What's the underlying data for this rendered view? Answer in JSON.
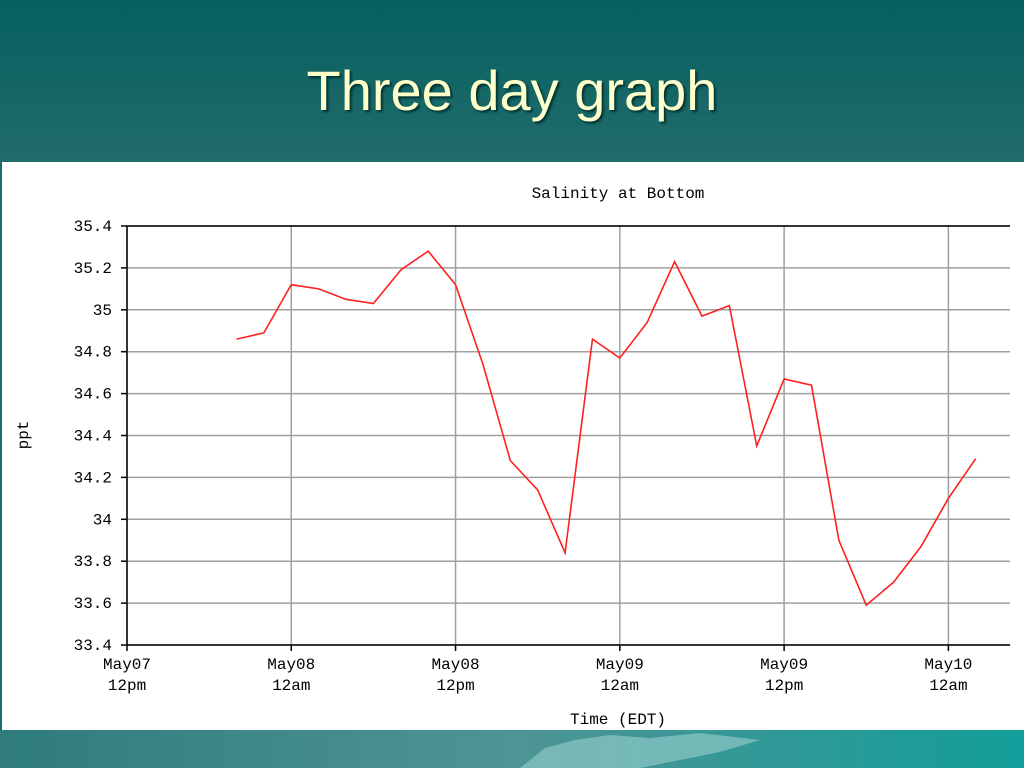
{
  "slide": {
    "title": "Three day graph"
  },
  "chart_data": {
    "type": "line",
    "title": "Salinity at Bottom",
    "x_label": "Time (EDT)",
    "y_label": "ppt",
    "x": [
      8,
      10,
      12,
      14,
      16,
      18,
      20,
      22,
      24,
      26,
      28,
      30,
      32,
      34,
      36,
      38,
      40,
      42,
      44,
      46,
      48,
      50,
      52,
      54,
      56,
      58,
      60,
      62
    ],
    "series": [
      {
        "color": "#ff2020",
        "values": [
          34.86,
          34.89,
          35.12,
          35.1,
          35.05,
          35.03,
          35.19,
          35.28,
          35.12,
          34.74,
          34.28,
          34.14,
          33.84,
          34.86,
          34.77,
          34.94,
          35.23,
          34.97,
          35.02,
          34.35,
          34.67,
          34.64,
          33.9,
          33.59,
          33.7,
          33.87,
          34.1,
          34.29
        ]
      }
    ],
    "xlim": [
      0,
      64.5
    ],
    "xticks": [
      {
        "value": 0,
        "label": "May07\n12pm"
      },
      {
        "value": 12,
        "label": "May08\n12am"
      },
      {
        "value": 24,
        "label": "May08\n12pm"
      },
      {
        "value": 36,
        "label": "May09\n12am"
      },
      {
        "value": 48,
        "label": "May09\n12pm"
      },
      {
        "value": 60,
        "label": "May10\n12am"
      }
    ],
    "ylim": [
      33.4,
      35.4
    ],
    "yticks": [
      33.4,
      33.6,
      33.8,
      34,
      34.2,
      34.4,
      34.6,
      34.8,
      35,
      35.2,
      35.4
    ],
    "grid": true
  }
}
